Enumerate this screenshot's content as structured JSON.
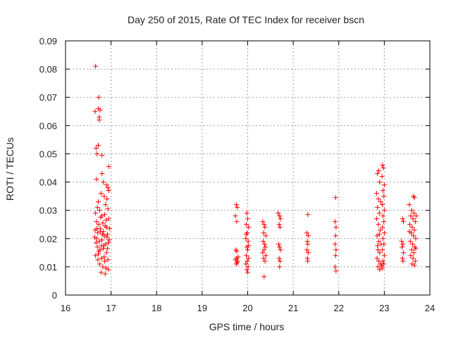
{
  "chart_data": {
    "type": "scatter",
    "title": "Day 250 of 2015, Rate Of TEC Index for receiver bscn",
    "xlabel": "GPS time / hours",
    "ylabel": "ROTI / TECUs",
    "xlim": [
      16,
      24
    ],
    "ylim": [
      0,
      0.09
    ],
    "xticks": [
      "16",
      "17",
      "18",
      "19",
      "20",
      "21",
      "22",
      "23",
      "24"
    ],
    "yticks": [
      "0",
      "0.01",
      "0.02",
      "0.03",
      "0.04",
      "0.05",
      "0.06",
      "0.07",
      "0.08",
      "0.09"
    ],
    "grid": true,
    "marker": "+",
    "color": "#ff0000",
    "series": [
      {
        "name": "ROTI",
        "points": [
          [
            16.66,
            0.081
          ],
          [
            16.65,
            0.065
          ],
          [
            16.72,
            0.066
          ],
          [
            16.74,
            0.062
          ],
          [
            16.73,
            0.07
          ],
          [
            16.74,
            0.063
          ],
          [
            16.76,
            0.0655
          ],
          [
            16.67,
            0.052
          ],
          [
            16.69,
            0.05
          ],
          [
            16.72,
            0.053
          ],
          [
            16.8,
            0.0495
          ],
          [
            16.95,
            0.0455
          ],
          [
            16.68,
            0.041
          ],
          [
            16.8,
            0.043
          ],
          [
            16.83,
            0.04
          ],
          [
            16.9,
            0.039
          ],
          [
            16.93,
            0.038
          ],
          [
            16.95,
            0.037
          ],
          [
            16.78,
            0.036
          ],
          [
            16.85,
            0.035
          ],
          [
            16.91,
            0.034
          ],
          [
            16.72,
            0.033
          ],
          [
            16.88,
            0.032
          ],
          [
            16.7,
            0.031
          ],
          [
            16.75,
            0.03
          ],
          [
            16.93,
            0.0305
          ],
          [
            16.66,
            0.029
          ],
          [
            16.8,
            0.028
          ],
          [
            16.86,
            0.0285
          ],
          [
            16.95,
            0.027
          ],
          [
            16.68,
            0.026
          ],
          [
            16.73,
            0.025
          ],
          [
            16.82,
            0.0255
          ],
          [
            16.9,
            0.024
          ],
          [
            16.65,
            0.023
          ],
          [
            16.71,
            0.022
          ],
          [
            16.77,
            0.0225
          ],
          [
            16.85,
            0.021
          ],
          [
            16.92,
            0.0215
          ],
          [
            16.68,
            0.02
          ],
          [
            16.74,
            0.019
          ],
          [
            16.8,
            0.0195
          ],
          [
            16.88,
            0.018
          ],
          [
            16.94,
            0.0185
          ],
          [
            16.7,
            0.017
          ],
          [
            16.76,
            0.016
          ],
          [
            16.83,
            0.0165
          ],
          [
            16.9,
            0.015
          ],
          [
            16.66,
            0.014
          ],
          [
            16.72,
            0.0145
          ],
          [
            16.79,
            0.013
          ],
          [
            16.86,
            0.012
          ],
          [
            16.93,
            0.0125
          ],
          [
            16.75,
            0.011
          ],
          [
            16.82,
            0.01
          ],
          [
            16.89,
            0.0095
          ],
          [
            16.94,
            0.009
          ],
          [
            16.78,
            0.008
          ],
          [
            16.87,
            0.0075
          ],
          [
            16.69,
            0.0235
          ],
          [
            16.77,
            0.0275
          ],
          [
            16.84,
            0.0175
          ],
          [
            16.91,
            0.0205
          ],
          [
            16.67,
            0.0185
          ],
          [
            16.73,
            0.0155
          ],
          [
            16.81,
            0.0215
          ],
          [
            16.87,
            0.0245
          ],
          [
            16.96,
            0.0195
          ],
          [
            16.71,
            0.0125
          ],
          [
            16.79,
            0.0175
          ],
          [
            16.85,
            0.0135
          ],
          [
            16.92,
            0.0165
          ],
          [
            16.64,
            0.0205
          ],
          [
            16.76,
            0.0235
          ],
          [
            16.83,
            0.0225
          ],
          [
            16.89,
            0.0265
          ],
          [
            16.97,
            0.0235
          ],
          [
            19.75,
            0.032
          ],
          [
            19.77,
            0.031
          ],
          [
            19.73,
            0.028
          ],
          [
            19.76,
            0.026
          ],
          [
            19.74,
            0.016
          ],
          [
            19.76,
            0.013
          ],
          [
            19.78,
            0.012
          ],
          [
            19.75,
            0.011
          ],
          [
            19.77,
            0.0115
          ],
          [
            19.73,
            0.0125
          ],
          [
            19.79,
            0.0135
          ],
          [
            19.76,
            0.0155
          ],
          [
            19.98,
            0.029
          ],
          [
            20.0,
            0.027
          ],
          [
            19.97,
            0.025
          ],
          [
            20.02,
            0.024
          ],
          [
            19.99,
            0.022
          ],
          [
            19.96,
            0.02
          ],
          [
            20.01,
            0.019
          ],
          [
            19.98,
            0.017
          ],
          [
            20.0,
            0.016
          ],
          [
            19.97,
            0.014
          ],
          [
            20.02,
            0.013
          ],
          [
            19.99,
            0.012
          ],
          [
            19.96,
            0.011
          ],
          [
            20.01,
            0.01
          ],
          [
            19.98,
            0.009
          ],
          [
            20.0,
            0.008
          ],
          [
            19.97,
            0.0215
          ],
          [
            20.02,
            0.0175
          ],
          [
            20.33,
            0.026
          ],
          [
            20.36,
            0.025
          ],
          [
            20.38,
            0.024
          ],
          [
            20.35,
            0.022
          ],
          [
            20.4,
            0.021
          ],
          [
            20.34,
            0.019
          ],
          [
            20.37,
            0.018
          ],
          [
            20.39,
            0.017
          ],
          [
            20.36,
            0.016
          ],
          [
            20.33,
            0.015
          ],
          [
            20.4,
            0.014
          ],
          [
            20.35,
            0.013
          ],
          [
            20.38,
            0.012
          ],
          [
            20.36,
            0.0065
          ],
          [
            20.67,
            0.029
          ],
          [
            20.7,
            0.028
          ],
          [
            20.72,
            0.027
          ],
          [
            20.69,
            0.025
          ],
          [
            20.71,
            0.024
          ],
          [
            20.68,
            0.018
          ],
          [
            20.7,
            0.017
          ],
          [
            20.72,
            0.016
          ],
          [
            20.69,
            0.013
          ],
          [
            20.71,
            0.012
          ],
          [
            20.7,
            0.01
          ],
          [
            21.32,
            0.0285
          ],
          [
            21.3,
            0.022
          ],
          [
            21.33,
            0.021
          ],
          [
            21.31,
            0.019
          ],
          [
            21.32,
            0.018
          ],
          [
            21.3,
            0.016
          ],
          [
            21.33,
            0.015
          ],
          [
            21.31,
            0.013
          ],
          [
            21.32,
            0.012
          ],
          [
            21.93,
            0.0345
          ],
          [
            21.92,
            0.026
          ],
          [
            21.94,
            0.024
          ],
          [
            21.93,
            0.021
          ],
          [
            21.92,
            0.018
          ],
          [
            21.94,
            0.016
          ],
          [
            21.93,
            0.014
          ],
          [
            21.92,
            0.01
          ],
          [
            21.94,
            0.0085
          ],
          [
            22.85,
            0.043
          ],
          [
            22.88,
            0.044
          ],
          [
            22.9,
            0.04
          ],
          [
            22.83,
            0.036
          ],
          [
            22.87,
            0.034
          ],
          [
            22.92,
            0.033
          ],
          [
            22.85,
            0.031
          ],
          [
            22.89,
            0.029
          ],
          [
            22.83,
            0.027
          ],
          [
            22.87,
            0.025
          ],
          [
            22.91,
            0.023
          ],
          [
            22.84,
            0.021
          ],
          [
            22.88,
            0.019
          ],
          [
            22.93,
            0.018
          ],
          [
            22.86,
            0.016
          ],
          [
            22.9,
            0.015
          ],
          [
            22.84,
            0.013
          ],
          [
            22.88,
            0.012
          ],
          [
            22.92,
            0.011
          ],
          [
            22.86,
            0.01
          ],
          [
            22.9,
            0.009
          ],
          [
            22.94,
            0.0105
          ],
          [
            22.89,
            0.0215
          ],
          [
            22.85,
            0.0175
          ],
          [
            22.96,
            0.046
          ],
          [
            22.98,
            0.045
          ],
          [
            22.95,
            0.042
          ],
          [
            23.0,
            0.039
          ],
          [
            22.97,
            0.037
          ],
          [
            22.99,
            0.035
          ],
          [
            22.96,
            0.032
          ],
          [
            23.0,
            0.03
          ],
          [
            22.97,
            0.028
          ],
          [
            22.99,
            0.026
          ],
          [
            22.96,
            0.024
          ],
          [
            23.0,
            0.022
          ],
          [
            22.97,
            0.02
          ],
          [
            22.99,
            0.018
          ],
          [
            22.96,
            0.016
          ],
          [
            23.0,
            0.014
          ],
          [
            22.97,
            0.012
          ],
          [
            22.99,
            0.011
          ],
          [
            22.96,
            0.0095
          ],
          [
            23.4,
            0.027
          ],
          [
            23.42,
            0.026
          ],
          [
            23.38,
            0.019
          ],
          [
            23.41,
            0.018
          ],
          [
            23.39,
            0.017
          ],
          [
            23.42,
            0.015
          ],
          [
            23.4,
            0.013
          ],
          [
            23.41,
            0.012
          ],
          [
            23.55,
            0.032
          ],
          [
            23.6,
            0.03
          ],
          [
            23.65,
            0.029
          ],
          [
            23.58,
            0.028
          ],
          [
            23.63,
            0.027
          ],
          [
            23.68,
            0.026
          ],
          [
            23.56,
            0.025
          ],
          [
            23.61,
            0.024
          ],
          [
            23.66,
            0.023
          ],
          [
            23.59,
            0.022
          ],
          [
            23.64,
            0.021
          ],
          [
            23.69,
            0.02
          ],
          [
            23.57,
            0.019
          ],
          [
            23.62,
            0.018
          ],
          [
            23.67,
            0.017
          ],
          [
            23.6,
            0.016
          ],
          [
            23.65,
            0.015
          ],
          [
            23.58,
            0.014
          ],
          [
            23.63,
            0.013
          ],
          [
            23.68,
            0.012
          ],
          [
            23.61,
            0.011
          ],
          [
            23.66,
            0.0105
          ],
          [
            23.64,
            0.035
          ],
          [
            23.66,
            0.0345
          ],
          [
            23.7,
            0.028
          ],
          [
            23.55,
            0.0225
          ],
          [
            23.69,
            0.0165
          ]
        ]
      }
    ]
  }
}
